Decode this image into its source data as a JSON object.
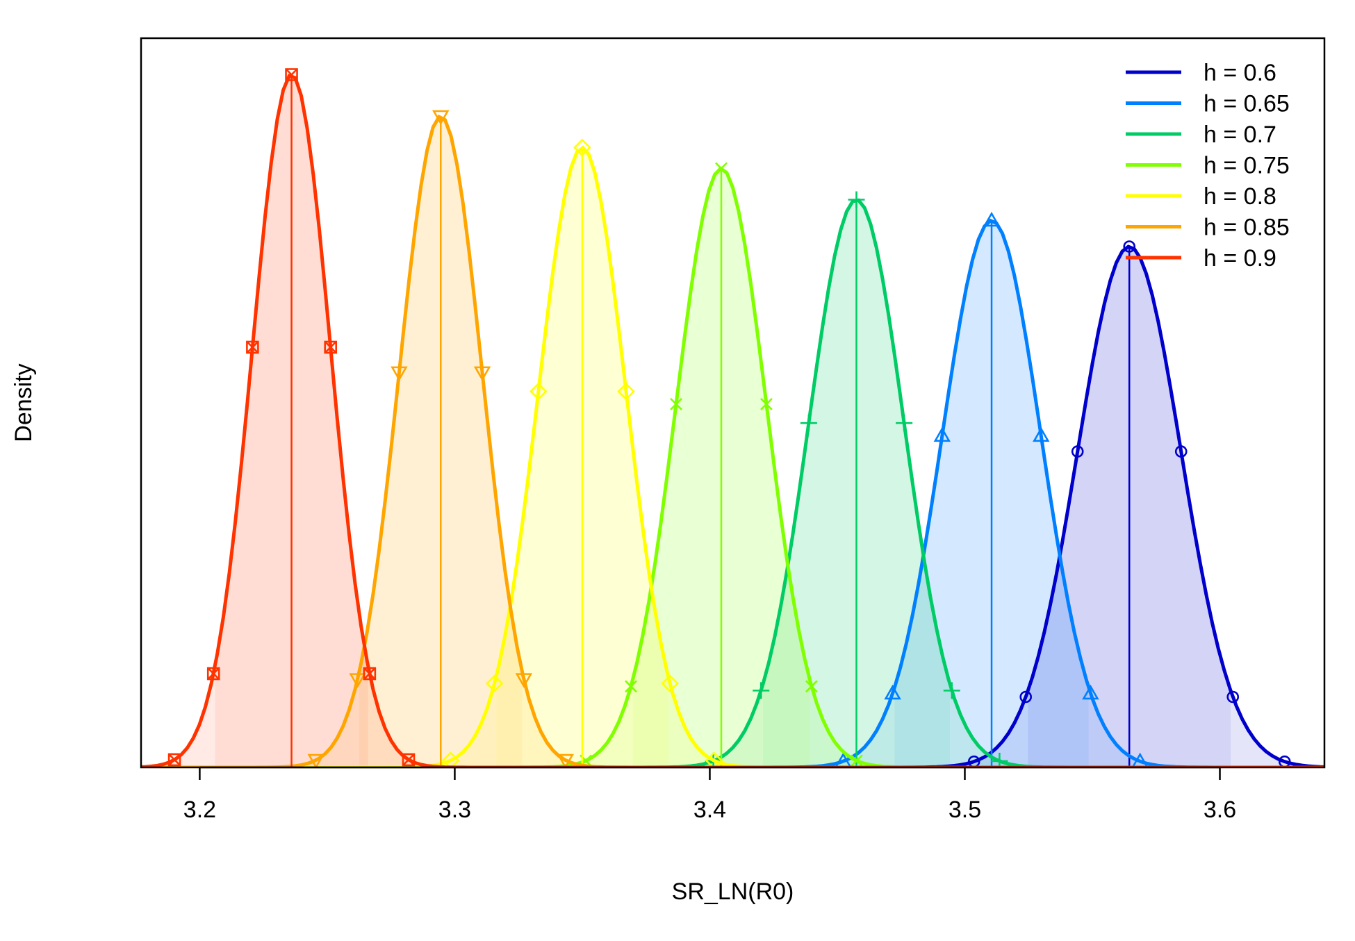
{
  "chart_data": {
    "type": "area",
    "title": "",
    "xlabel": "SR_LN(R0)",
    "ylabel": "Density",
    "xlim": [
      3.177,
      3.641
    ],
    "x_ticks": [
      "3.2",
      "3.3",
      "3.4",
      "3.5",
      "3.6"
    ],
    "x_tick_values": [
      3.2,
      3.3,
      3.4,
      3.5,
      3.6
    ],
    "y_ticks_shown": false,
    "legend_position": "top-right",
    "series": [
      {
        "name": "h = 0.6",
        "color": "#0000CC",
        "mean": 3.5645,
        "sd": 0.0203,
        "peak_density": 1.0,
        "marker": "circle-icon"
      },
      {
        "name": "h = 0.65",
        "color": "#0080FF",
        "mean": 3.5105,
        "sd": 0.0194,
        "peak_density": 1.05,
        "marker": "triangle-up-icon"
      },
      {
        "name": "h = 0.7",
        "color": "#00CC66",
        "mean": 3.4575,
        "sd": 0.0187,
        "peak_density": 1.09,
        "marker": "plus-icon"
      },
      {
        "name": "h = 0.75",
        "color": "#80FF00",
        "mean": 3.4045,
        "sd": 0.0177,
        "peak_density": 1.15,
        "marker": "x-icon"
      },
      {
        "name": "h = 0.8",
        "color": "#FFFF00",
        "mean": 3.35,
        "sd": 0.0172,
        "peak_density": 1.19,
        "marker": "diamond-icon"
      },
      {
        "name": "h = 0.85",
        "color": "#FFA500",
        "mean": 3.2945,
        "sd": 0.0163,
        "peak_density": 1.25,
        "marker": "triangle-down-icon"
      },
      {
        "name": "h = 0.9",
        "color": "#FF3300",
        "mean": 3.236,
        "sd": 0.0153,
        "peak_density": 1.33,
        "marker": "square-x-icon"
      }
    ]
  }
}
